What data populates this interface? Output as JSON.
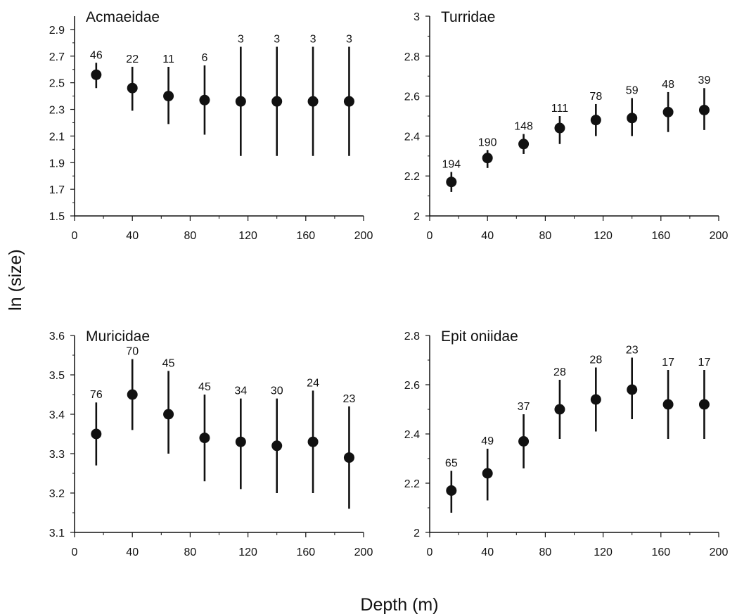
{
  "figure": {
    "ylabel": "ln (size)",
    "xlabel": "Depth (m)"
  },
  "chart_data": [
    {
      "type": "scatter",
      "title": "Acmaeidae",
      "xlim": [
        0,
        200
      ],
      "xticks": [
        0,
        40,
        80,
        120,
        160,
        200
      ],
      "ylim": [
        1.5,
        3.0
      ],
      "yticks": [
        1.5,
        1.7,
        1.9,
        2.1,
        2.3,
        2.5,
        2.7,
        2.9
      ],
      "ytick_labels": [
        "1.5",
        "1.7",
        "1.9",
        "2.1",
        "2.3",
        "2.5",
        "2.7",
        "2.9"
      ],
      "x": [
        15,
        40,
        65,
        90,
        115,
        140,
        165,
        190
      ],
      "y": [
        2.56,
        2.46,
        2.4,
        2.37,
        2.36,
        2.36,
        2.36,
        2.36
      ],
      "err_low": [
        2.46,
        2.29,
        2.19,
        2.11,
        1.95,
        1.95,
        1.95,
        1.95
      ],
      "err_high": [
        2.65,
        2.62,
        2.62,
        2.63,
        2.77,
        2.77,
        2.77,
        2.77
      ],
      "n": [
        "46",
        "22",
        "11",
        "6",
        "3",
        "3",
        "3",
        "3"
      ]
    },
    {
      "type": "scatter",
      "title": "Turridae",
      "xlim": [
        0,
        200
      ],
      "xticks": [
        0,
        40,
        80,
        120,
        160,
        200
      ],
      "ylim": [
        2.0,
        3.0
      ],
      "yticks": [
        2.0,
        2.2,
        2.4,
        2.6,
        2.8,
        3.0
      ],
      "ytick_labels": [
        "2",
        "2.2",
        "2.4",
        "2.6",
        "2.8",
        "3"
      ],
      "x": [
        15,
        40,
        65,
        90,
        115,
        140,
        165,
        190
      ],
      "y": [
        2.17,
        2.29,
        2.36,
        2.44,
        2.48,
        2.49,
        2.52,
        2.53
      ],
      "err_low": [
        2.12,
        2.24,
        2.31,
        2.36,
        2.4,
        2.4,
        2.42,
        2.43
      ],
      "err_high": [
        2.22,
        2.33,
        2.41,
        2.5,
        2.56,
        2.59,
        2.62,
        2.64
      ],
      "n": [
        "194",
        "190",
        "148",
        "111",
        "78",
        "59",
        "48",
        "39"
      ]
    },
    {
      "type": "scatter",
      "title": "Muricidae",
      "xlim": [
        0,
        200
      ],
      "xticks": [
        0,
        40,
        80,
        120,
        160,
        200
      ],
      "ylim": [
        3.1,
        3.6
      ],
      "yticks": [
        3.1,
        3.2,
        3.3,
        3.4,
        3.5,
        3.6
      ],
      "ytick_labels": [
        "3.1",
        "3.2",
        "3.3",
        "3.4",
        "3.5",
        "3.6"
      ],
      "x": [
        15,
        40,
        65,
        90,
        115,
        140,
        165,
        190
      ],
      "y": [
        3.35,
        3.45,
        3.4,
        3.34,
        3.33,
        3.32,
        3.33,
        3.29
      ],
      "err_low": [
        3.27,
        3.36,
        3.3,
        3.23,
        3.21,
        3.2,
        3.2,
        3.16
      ],
      "err_high": [
        3.43,
        3.54,
        3.51,
        3.45,
        3.44,
        3.44,
        3.46,
        3.42
      ],
      "n": [
        "76",
        "70",
        "45",
        "45",
        "34",
        "30",
        "24",
        "23"
      ]
    },
    {
      "type": "scatter",
      "title": "Epit oniidae",
      "xlim": [
        0,
        200
      ],
      "xticks": [
        0,
        40,
        80,
        120,
        160,
        200
      ],
      "ylim": [
        2.0,
        2.8
      ],
      "yticks": [
        2.0,
        2.2,
        2.4,
        2.6,
        2.8
      ],
      "ytick_labels": [
        "2",
        "2.2",
        "2.4",
        "2.6",
        "2.8"
      ],
      "x": [
        15,
        40,
        65,
        90,
        115,
        140,
        165,
        190
      ],
      "y": [
        2.17,
        2.24,
        2.37,
        2.5,
        2.54,
        2.58,
        2.52,
        2.52
      ],
      "err_low": [
        2.08,
        2.13,
        2.26,
        2.38,
        2.41,
        2.46,
        2.38,
        2.38
      ],
      "err_high": [
        2.25,
        2.34,
        2.48,
        2.62,
        2.67,
        2.71,
        2.66,
        2.66
      ],
      "n": [
        "65",
        "49",
        "37",
        "28",
        "28",
        "23",
        "17",
        "17"
      ]
    }
  ]
}
